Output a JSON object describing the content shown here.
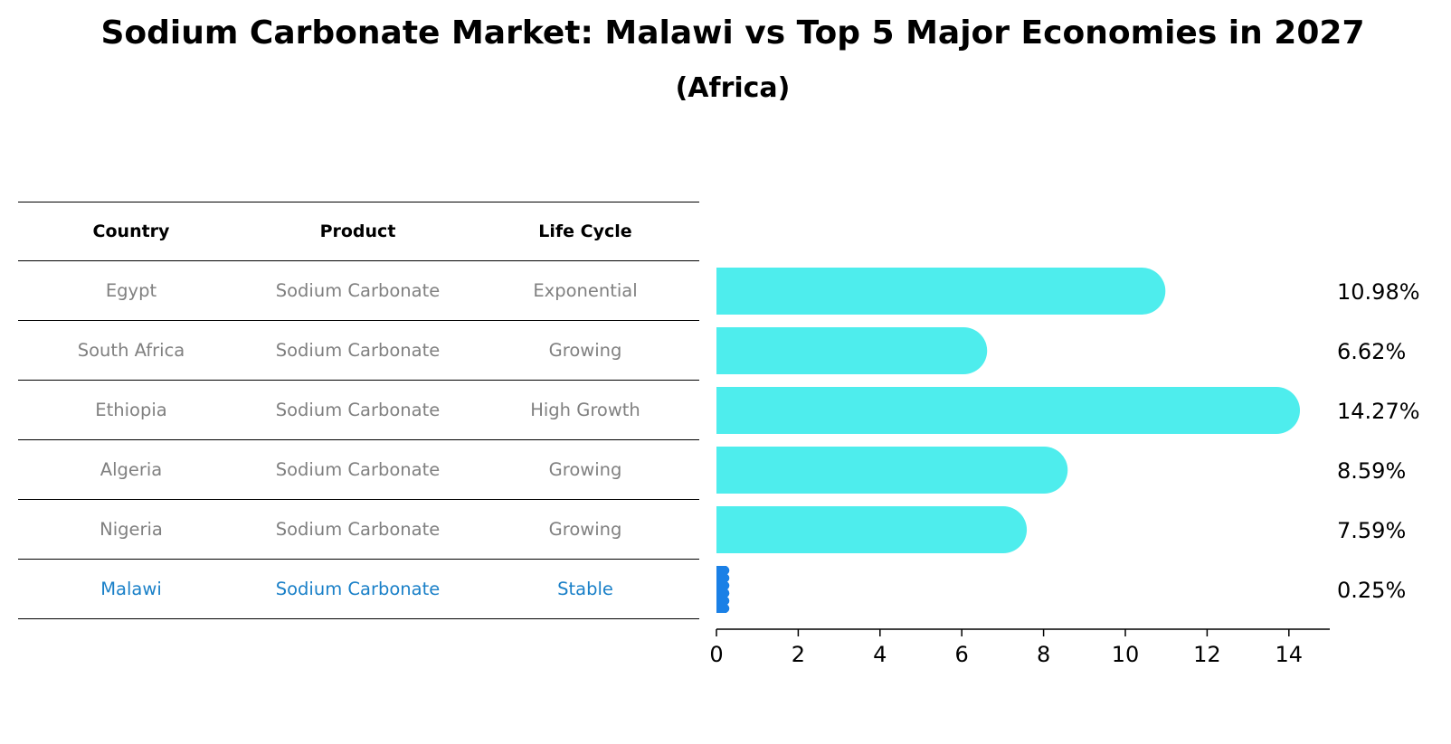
{
  "title": "Sodium Carbonate Market: Malawi vs Top 5 Major Economies in 2027",
  "subtitle": "(Africa)",
  "table": {
    "headers": [
      "Country",
      "Product",
      "Life Cycle"
    ],
    "rows": [
      [
        "Egypt",
        "Sodium Carbonate",
        "Exponential"
      ],
      [
        "South Africa",
        "Sodium Carbonate",
        "Growing"
      ],
      [
        "Ethiopia",
        "Sodium Carbonate",
        "High Growth"
      ],
      [
        "Algeria",
        "Sodium Carbonate",
        "Growing"
      ],
      [
        "Nigeria",
        "Sodium Carbonate",
        "Growing"
      ],
      [
        "Malawi",
        "Sodium Carbonate",
        "Stable"
      ]
    ]
  },
  "chart_data": {
    "type": "bar",
    "orientation": "horizontal",
    "categories": [
      "Egypt",
      "South Africa",
      "Ethiopia",
      "Algeria",
      "Nigeria",
      "Malawi"
    ],
    "values": [
      10.98,
      6.62,
      14.27,
      8.59,
      7.59,
      0.25
    ],
    "value_labels": [
      "10.98%",
      "6.62%",
      "14.27%",
      "8.59%",
      "7.59%",
      "0.25%"
    ],
    "highlight": "Malawi",
    "xlim": [
      0,
      15
    ],
    "xticks": [
      0,
      2,
      4,
      6,
      8,
      10,
      12,
      14
    ],
    "title": "Sodium Carbonate Market: Malawi vs Top 5 Major Economies in 2027",
    "subtitle": "(Africa)",
    "xlabel": "",
    "ylabel": "",
    "colors": {
      "bar": "#4eeded",
      "highlight": "#1a80e6"
    }
  }
}
